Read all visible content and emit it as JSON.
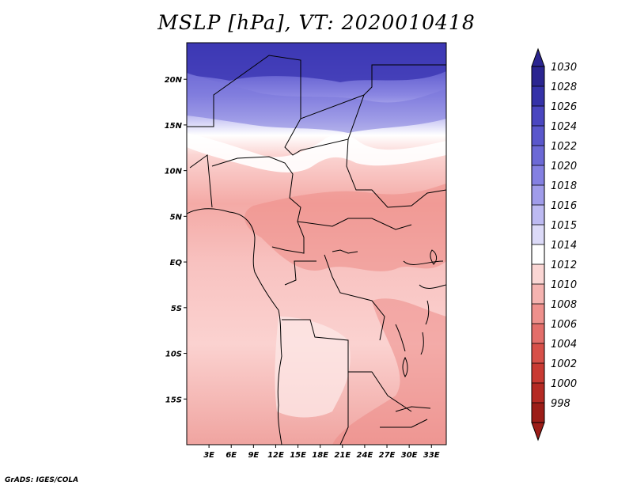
{
  "title": "MSLP [hPa], VT: 2020010418",
  "credit": "GrADS: IGES/COLA",
  "map": {
    "variable": "Mean sea level pressure",
    "units": "hPa",
    "valid_time": "2020010418",
    "lon_range": [
      0,
      35
    ],
    "lat_range": [
      -20,
      24
    ],
    "lon_ticks": [
      "3E",
      "6E",
      "9E",
      "12E",
      "15E",
      "18E",
      "21E",
      "24E",
      "27E",
      "30E",
      "33E"
    ],
    "lat_ticks": [
      "20N",
      "15N",
      "10N",
      "5N",
      "EQ",
      "5S",
      "10S",
      "15S"
    ],
    "lat_tick_values": [
      20,
      15,
      10,
      5,
      0,
      -5,
      -10,
      -15
    ],
    "lon_tick_values": [
      3,
      6,
      9,
      12,
      15,
      18,
      21,
      24,
      27,
      30,
      33
    ]
  },
  "colorbar": {
    "labels": [
      "1030",
      "1028",
      "1026",
      "1024",
      "1022",
      "1020",
      "1018",
      "1016",
      "1015",
      "1014",
      "1012",
      "1010",
      "1008",
      "1006",
      "1004",
      "1002",
      "1000",
      "998"
    ],
    "colors": [
      "#2b2590",
      "#3532a8",
      "#4a46c0",
      "#5a57cc",
      "#6c69d6",
      "#8480e2",
      "#a09cea",
      "#bdbaf2",
      "#dcdaf8",
      "#ffffff",
      "#fbd6d4",
      "#f5b3b0",
      "#ee908c",
      "#e36e6a",
      "#d75049",
      "#c93a33",
      "#b52a24",
      "#9c1d18"
    ]
  }
}
